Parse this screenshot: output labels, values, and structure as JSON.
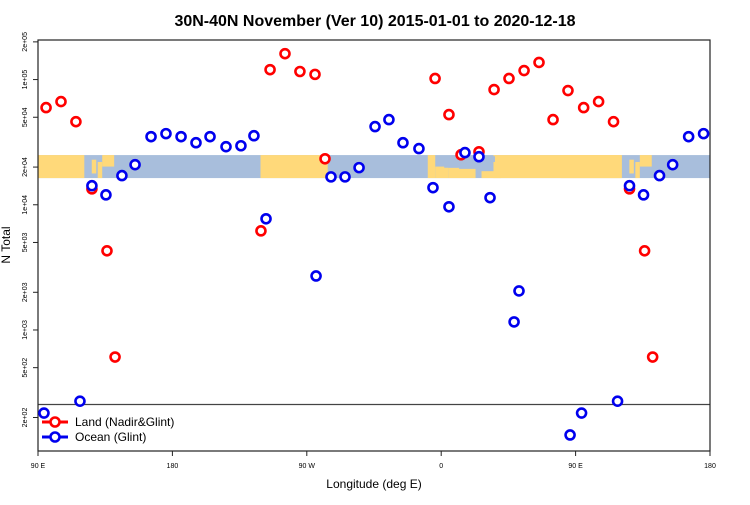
{
  "chart_data": {
    "type": "scatter",
    "title": "30N-40N November (Ver 10)   2015-01-01 to 2020-12-18",
    "xlabel": "Longitude (deg E)",
    "ylabel": "N Total",
    "x_range_deg_east": [
      90,
      540
    ],
    "x_ticks": [
      {
        "value": 90,
        "label": "90 E"
      },
      {
        "value": 180,
        "label": "180"
      },
      {
        "value": 270,
        "label": "90 W"
      },
      {
        "value": 360,
        "label": "0"
      },
      {
        "value": 450,
        "label": "90 E"
      },
      {
        "value": 540,
        "label": "180"
      }
    ],
    "y_scale": "log",
    "ylim": [
      108,
      207000
    ],
    "y_ticks": [
      {
        "value": 200,
        "label": "2e+02"
      },
      {
        "value": 500,
        "label": "5e+02"
      },
      {
        "value": 1000,
        "label": "1e+03"
      },
      {
        "value": 2000,
        "label": "2e+03"
      },
      {
        "value": 5000,
        "label": "5e+03"
      },
      {
        "value": 10000,
        "label": "1e+04"
      },
      {
        "value": 20000,
        "label": "2e+04"
      },
      {
        "value": 50000,
        "label": "5e+04"
      },
      {
        "value": 100000,
        "label": "1e+05"
      },
      {
        "value": 200000,
        "label": "2e+05"
      }
    ],
    "grid": false,
    "legend_position": "bottom-left",
    "map_strip": {
      "latitude_band": "30N-40N",
      "land_color": "#ffd97a",
      "ocean_color": "#a8bedc",
      "at_value": 20000
    },
    "series": [
      {
        "name": "Land (Nadir&Glint)",
        "color": "#ff0000",
        "points": [
          {
            "lon": 95.4,
            "n": 59700
          },
          {
            "lon": 105.4,
            "n": 66700
          },
          {
            "lon": 115.4,
            "n": 46100
          },
          {
            "lon": 126.1,
            "n": 13400
          },
          {
            "lon": 136.2,
            "n": 4290
          },
          {
            "lon": 141.6,
            "n": 608
          },
          {
            "lon": -120.7,
            "n": 6190
          },
          {
            "lon": -114.6,
            "n": 120000
          },
          {
            "lon": -104.6,
            "n": 161000
          },
          {
            "lon": -94.6,
            "n": 116000
          },
          {
            "lon": -84.5,
            "n": 110000
          },
          {
            "lon": -77.8,
            "n": 23300
          },
          {
            "lon": -4.1,
            "n": 102000
          },
          {
            "lon": 5.2,
            "n": 52500
          },
          {
            "lon": 13.3,
            "n": 25100
          },
          {
            "lon": 25.3,
            "n": 26500
          },
          {
            "lon": 35.4,
            "n": 83200
          },
          {
            "lon": 45.4,
            "n": 102000
          },
          {
            "lon": 55.5,
            "n": 118000
          },
          {
            "lon": 65.5,
            "n": 137000
          },
          {
            "lon": 74.9,
            "n": 47900
          },
          {
            "lon": 84.9,
            "n": 81700
          }
        ]
      },
      {
        "name": "Ocean (Glint)",
        "color": "#0000ee",
        "points": [
          {
            "lon": 94.0,
            "n": 217
          },
          {
            "lon": 118.1,
            "n": 270
          },
          {
            "lon": 126.1,
            "n": 14200
          },
          {
            "lon": 135.5,
            "n": 12000
          },
          {
            "lon": 146.2,
            "n": 17100
          },
          {
            "lon": 155.0,
            "n": 20900
          },
          {
            "lon": 165.7,
            "n": 35000
          },
          {
            "lon": 175.7,
            "n": 37000
          },
          {
            "lon": -174.2,
            "n": 35000
          },
          {
            "lon": -164.2,
            "n": 31300
          },
          {
            "lon": -154.8,
            "n": 35000
          },
          {
            "lon": -144.1,
            "n": 29100
          },
          {
            "lon": -134.1,
            "n": 29600
          },
          {
            "lon": -125.4,
            "n": 35600
          },
          {
            "lon": -117.3,
            "n": 7730
          },
          {
            "lon": -83.8,
            "n": 2700
          },
          {
            "lon": -73.8,
            "n": 16700
          },
          {
            "lon": -64.4,
            "n": 16700
          },
          {
            "lon": -55.0,
            "n": 19800
          },
          {
            "lon": -44.3,
            "n": 42100
          },
          {
            "lon": -35.0,
            "n": 47900
          },
          {
            "lon": -25.6,
            "n": 31300
          },
          {
            "lon": -14.9,
            "n": 28100
          },
          {
            "lon": -5.5,
            "n": 13700
          },
          {
            "lon": 5.2,
            "n": 9640
          },
          {
            "lon": 15.9,
            "n": 26100
          },
          {
            "lon": 25.3,
            "n": 24200
          },
          {
            "lon": 32.7,
            "n": 11400
          },
          {
            "lon": 48.8,
            "n": 1160
          },
          {
            "lon": 52.1,
            "n": 2050
          },
          {
            "lon": 86.3,
            "n": 145
          }
        ]
      }
    ]
  }
}
